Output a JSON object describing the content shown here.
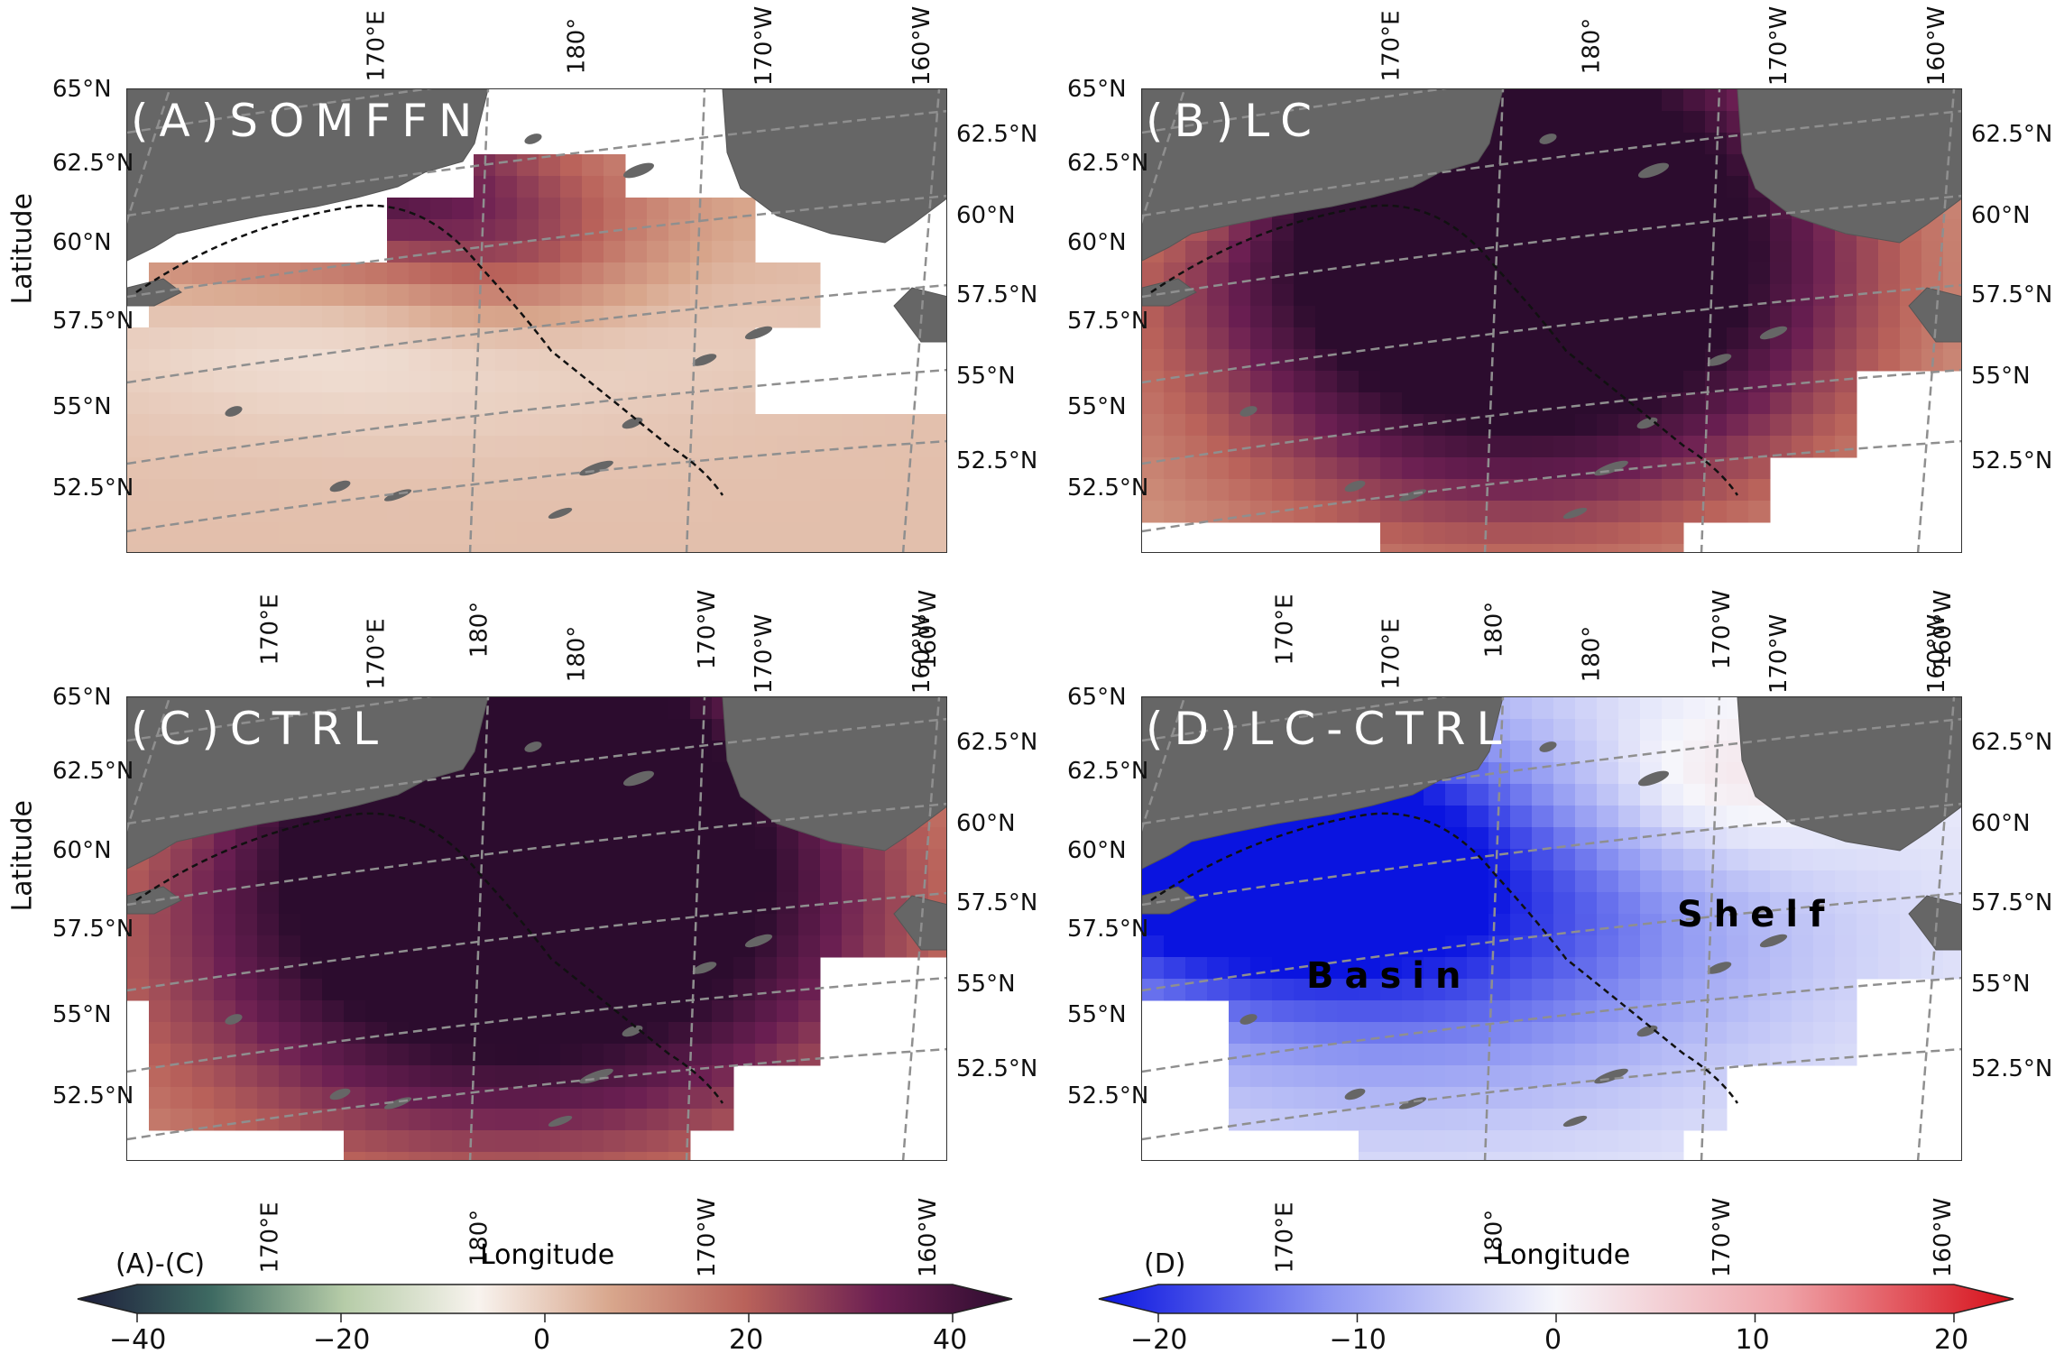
{
  "panels": [
    {
      "id": "A",
      "label": "(A)SOMFFN",
      "kind": "seq",
      "pattern": "somffn"
    },
    {
      "id": "B",
      "label": "(B)LC",
      "kind": "seq",
      "pattern": "lc"
    },
    {
      "id": "C",
      "label": "(C)CTRL",
      "kind": "seq",
      "pattern": "ctrl"
    },
    {
      "id": "D",
      "label": "(D)LC-CTRL",
      "kind": "div",
      "pattern": "diff",
      "regions": [
        "Basin",
        "Shelf"
      ]
    }
  ],
  "axes": {
    "top_ticks": [
      "170°E",
      "180°",
      "170°W",
      "160°W"
    ],
    "bottom_ticks": [
      "170°E",
      "180°",
      "170°W",
      "160°W"
    ],
    "left_ticks": [
      "65°N",
      "62.5°N",
      "60°N",
      "57.5°N",
      "55°N",
      "52.5°N"
    ],
    "right_ticks": [
      "62.5°N",
      "60°N",
      "57.5°N",
      "55°N",
      "52.5°N"
    ],
    "xlabel": "Longitude",
    "ylabel": "Latitude"
  },
  "colorbars": [
    {
      "title": "(A)-(C)",
      "ticks": [
        "−40",
        "−20",
        "0",
        "20",
        "40"
      ],
      "min": -40,
      "max": 40,
      "colors": [
        "#1c1c3a",
        "#3e6a62",
        "#b6cca8",
        "#f8f3ee",
        "#d8a68c",
        "#b9625a",
        "#6b1f52",
        "#2c0c2e"
      ]
    },
    {
      "title": "(D)",
      "ticks": [
        "−20",
        "−10",
        "0",
        "10",
        "20"
      ],
      "min": -20,
      "max": 20,
      "colors": [
        "#0a14e0",
        "#8c95f2",
        "#f6f6fb",
        "#efa3a8",
        "#d60d17"
      ]
    }
  ],
  "colors": {
    "land": "#666666",
    "grid": "#8f8f8f",
    "border": "#333333"
  }
}
